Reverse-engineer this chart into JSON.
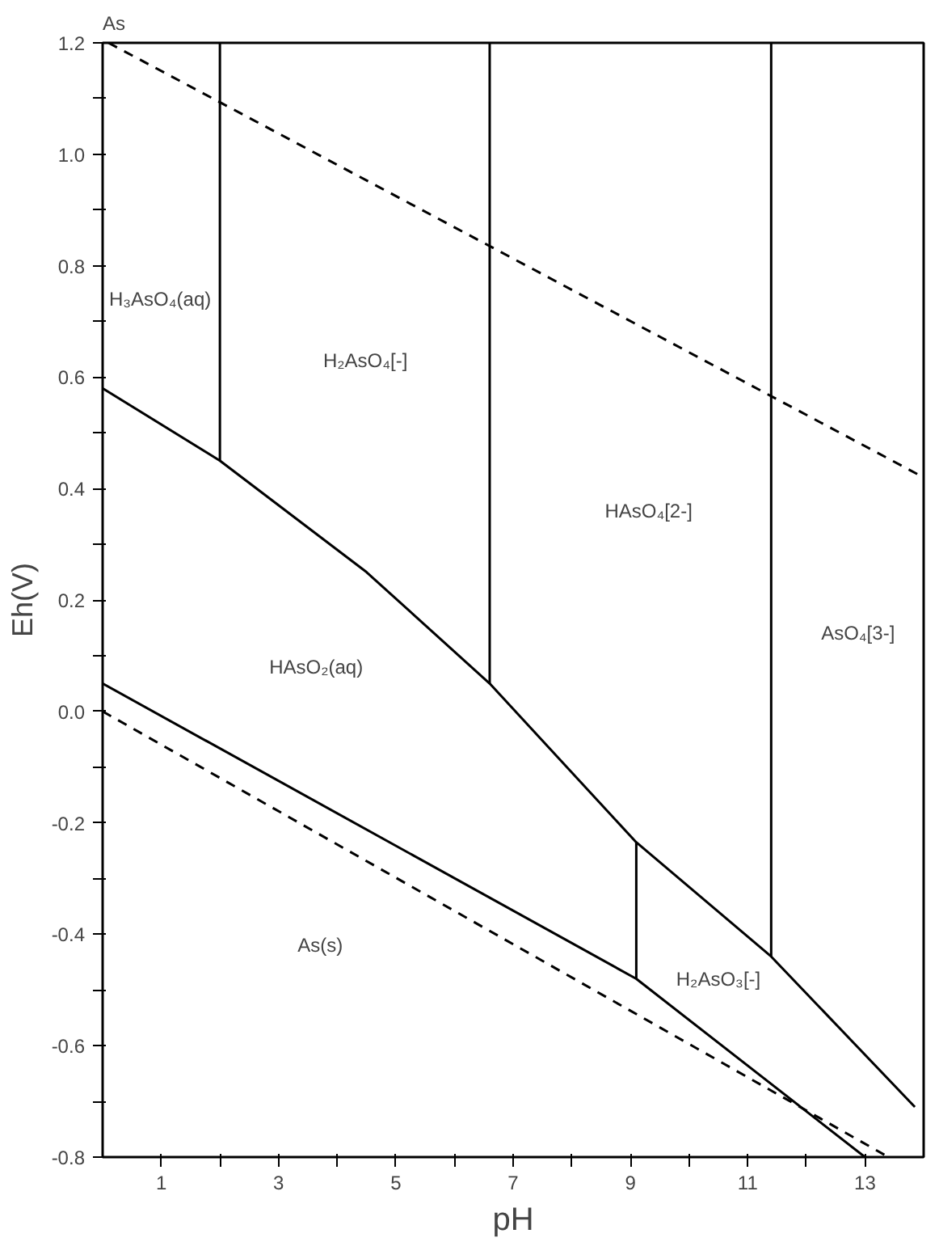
{
  "chart_data": {
    "type": "line",
    "title": "As",
    "xlabel": "pH",
    "ylabel": "Eh(V)",
    "xlim": [
      0,
      14
    ],
    "ylim": [
      -0.8,
      1.2
    ],
    "xticks": [
      1,
      {
        "value": 2,
        "label": null
      },
      3,
      {
        "value": 4,
        "label": null
      },
      5,
      {
        "value": 6,
        "label": null
      },
      7,
      {
        "value": 8,
        "label": null
      },
      9,
      {
        "value": 10,
        "label": null
      },
      11,
      {
        "value": 12,
        "label": null
      },
      13
    ],
    "yticks": [
      {
        "value": -0.8,
        "label": "-0.8"
      },
      {
        "value": -0.7,
        "label": null
      },
      {
        "value": -0.6,
        "label": "-0.6"
      },
      {
        "value": -0.5,
        "label": null
      },
      {
        "value": -0.4,
        "label": "-0.4"
      },
      {
        "value": -0.3,
        "label": null
      },
      {
        "value": -0.2,
        "label": "-0.2"
      },
      {
        "value": -0.1,
        "label": null
      },
      {
        "value": 0,
        "label": "0.0"
      },
      {
        "value": 0.1,
        "label": null
      },
      {
        "value": 0.2,
        "label": "0.2"
      },
      {
        "value": 0.3,
        "label": null
      },
      {
        "value": 0.4,
        "label": "0.4"
      },
      {
        "value": 0.5,
        "label": null
      },
      {
        "value": 0.6,
        "label": "0.6"
      },
      {
        "value": 0.7,
        "label": null
      },
      {
        "value": 0.8,
        "label": "0.8"
      },
      {
        "value": 0.9,
        "label": null
      },
      {
        "value": 1.0,
        "label": "1.0"
      },
      {
        "value": 1.1,
        "label": null
      },
      {
        "value": 1.2,
        "label": "1.2"
      }
    ],
    "grid": false,
    "marker": "none",
    "series": [
      {
        "color": "#000000",
        "line_style": "dashed",
        "x": [
          0.1,
          14
        ],
        "values": [
          1.2,
          0.42
        ]
      },
      {
        "color": "#000000",
        "line_style": "dashed",
        "x": [
          0,
          13.4
        ],
        "values": [
          0.0,
          -0.8
        ]
      },
      {
        "color": "#000000",
        "line_style": "solid",
        "x": [
          0,
          9.1,
          13
        ],
        "values": [
          0.05,
          -0.48,
          -0.8
        ]
      },
      {
        "color": "#000000",
        "line_style": "solid",
        "x": [
          0,
          2.0,
          4.5,
          6.6,
          9.1,
          11.4,
          13.85
        ],
        "values": [
          0.58,
          0.45,
          0.25,
          0.05,
          -0.235,
          -0.44,
          -0.71
        ]
      },
      {
        "color": "#000000",
        "line_style": "solid",
        "x": [
          2.0,
          2.0
        ],
        "values": [
          0.45,
          1.2
        ]
      },
      {
        "color": "#000000",
        "line_style": "solid",
        "x": [
          6.6,
          6.6
        ],
        "values": [
          0.05,
          1.2
        ]
      },
      {
        "color": "#000000",
        "line_style": "solid",
        "x": [
          11.4,
          11.4
        ],
        "values": [
          -0.44,
          1.2
        ]
      },
      {
        "color": "#000000",
        "line_style": "solid",
        "x": [
          9.1,
          9.1
        ],
        "values": [
          -0.48,
          -0.235
        ]
      }
    ],
    "annotations": [
      "H₃AsO₄(aq)",
      "H₂AsO₄[-]",
      "HAsO₄[2-]",
      "AsO₄[3-]",
      "HAsO₂(aq)",
      "As(s)",
      "H₂AsO₃[-]"
    ]
  }
}
